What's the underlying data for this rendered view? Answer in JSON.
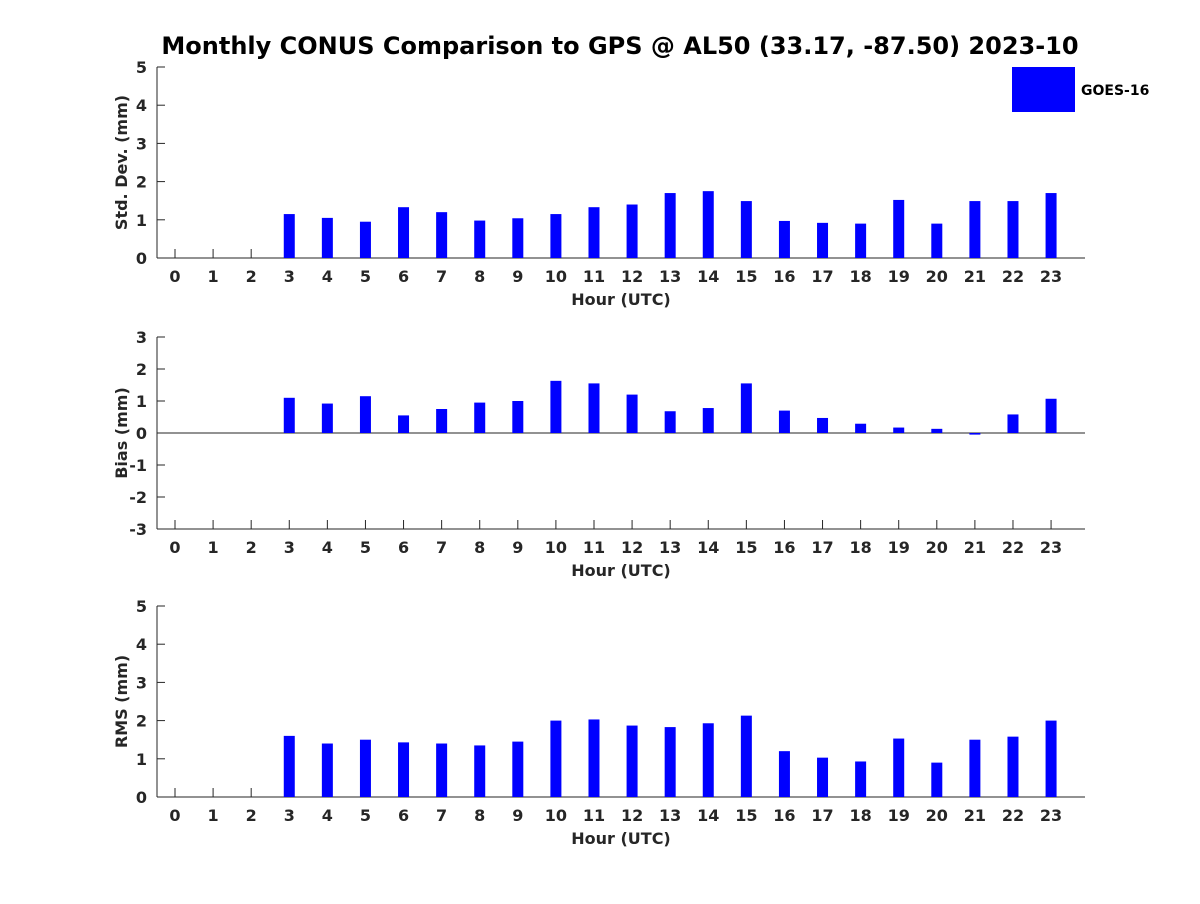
{
  "chart_data": {
    "title": "Monthly CONUS Comparison to GPS @ AL50 (33.17, -87.50) 2023-10",
    "legend": {
      "label": "GOES-16",
      "color": "#0000ff",
      "placement": "top-right"
    },
    "panels": [
      {
        "type": "bar",
        "ylabel": "Std. Dev. (mm)",
        "xlabel": "Hour (UTC)",
        "ylim": [
          0,
          5
        ],
        "yticks": [
          0,
          1,
          2,
          3,
          4,
          5
        ],
        "categories": [
          "0",
          "1",
          "2",
          "3",
          "4",
          "5",
          "6",
          "7",
          "8",
          "9",
          "10",
          "11",
          "12",
          "13",
          "14",
          "15",
          "16",
          "17",
          "18",
          "19",
          "20",
          "21",
          "22",
          "23"
        ],
        "series": [
          {
            "name": "GOES-16",
            "values": [
              null,
              null,
              null,
              1.15,
              1.05,
              0.95,
              1.33,
              1.2,
              0.98,
              1.04,
              1.15,
              1.33,
              1.4,
              1.7,
              1.75,
              1.49,
              0.97,
              0.92,
              0.9,
              1.52,
              0.9,
              1.49,
              1.49,
              1.7
            ]
          }
        ]
      },
      {
        "type": "bar",
        "ylabel": "Bias (mm)",
        "xlabel": "Hour (UTC)",
        "ylim": [
          -3,
          3
        ],
        "yticks": [
          -3,
          -2,
          -1,
          0,
          1,
          2,
          3
        ],
        "categories": [
          "0",
          "1",
          "2",
          "3",
          "4",
          "5",
          "6",
          "7",
          "8",
          "9",
          "10",
          "11",
          "12",
          "13",
          "14",
          "15",
          "16",
          "17",
          "18",
          "19",
          "20",
          "21",
          "22",
          "23"
        ],
        "series": [
          {
            "name": "GOES-16",
            "values": [
              null,
              null,
              null,
              1.1,
              0.92,
              1.15,
              0.55,
              0.75,
              0.95,
              1.0,
              1.63,
              1.55,
              1.2,
              0.68,
              0.78,
              1.55,
              0.7,
              0.47,
              0.29,
              0.17,
              0.13,
              -0.05,
              0.58,
              1.07
            ]
          }
        ]
      },
      {
        "type": "bar",
        "ylabel": "RMS (mm)",
        "xlabel": "Hour (UTC)",
        "ylim": [
          0,
          5
        ],
        "yticks": [
          0,
          1,
          2,
          3,
          4,
          5
        ],
        "categories": [
          "0",
          "1",
          "2",
          "3",
          "4",
          "5",
          "6",
          "7",
          "8",
          "9",
          "10",
          "11",
          "12",
          "13",
          "14",
          "15",
          "16",
          "17",
          "18",
          "19",
          "20",
          "21",
          "22",
          "23"
        ],
        "series": [
          {
            "name": "GOES-16",
            "values": [
              null,
              null,
              null,
              1.6,
              1.4,
              1.5,
              1.43,
              1.4,
              1.35,
              1.45,
              2.0,
              2.03,
              1.87,
              1.83,
              1.93,
              2.13,
              1.2,
              1.03,
              0.93,
              1.53,
              0.9,
              1.5,
              1.58,
              2.0
            ]
          }
        ]
      }
    ]
  }
}
